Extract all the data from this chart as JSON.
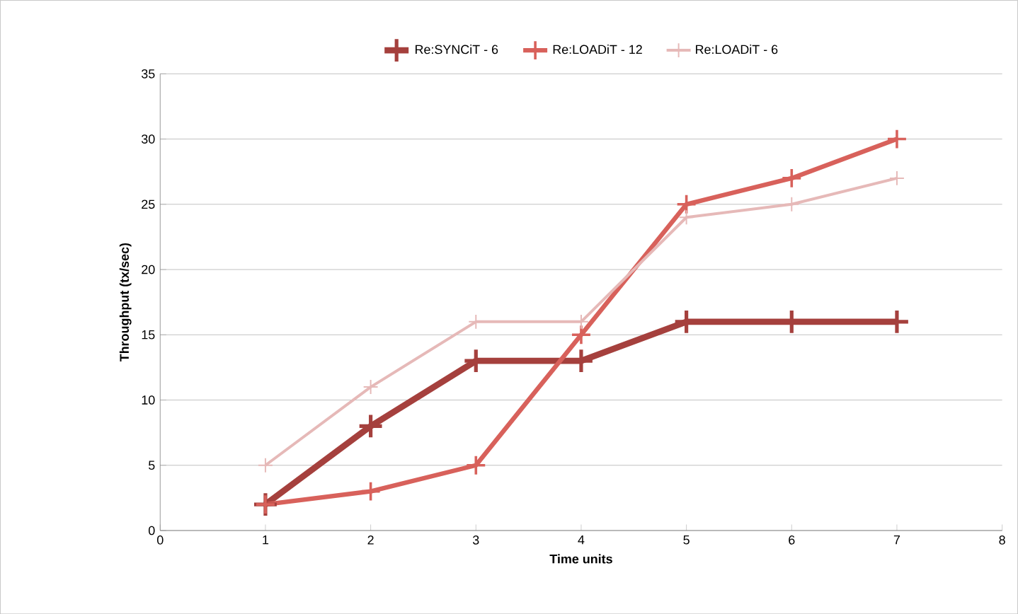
{
  "chart_data": {
    "type": "line",
    "xlabel": "Time units",
    "ylabel": "Throughput (tx/sec)",
    "xlim": [
      0,
      8
    ],
    "xticks": [
      0,
      1,
      2,
      3,
      4,
      5,
      6,
      7,
      8
    ],
    "ylim": [
      0,
      35
    ],
    "yticks": [
      0,
      5,
      10,
      15,
      20,
      25,
      30,
      35
    ],
    "grid": "y",
    "legend": "top",
    "marker": "cross",
    "line_style": "solid",
    "x": [
      1,
      2,
      3,
      4,
      5,
      6,
      7
    ],
    "series": [
      {
        "name": "Re:SYNCiT - 6",
        "color": "#a5403d",
        "values": [
          2,
          8,
          13,
          13,
          16,
          16,
          16
        ]
      },
      {
        "name": "Re:LOADiT - 12",
        "color": "#d8615b",
        "values": [
          2,
          3,
          5,
          15,
          25,
          27,
          30
        ]
      },
      {
        "name": "Re:LOADiT - 6",
        "color": "#e6b9b8",
        "values": [
          5,
          11,
          16,
          16,
          24,
          25,
          27
        ]
      }
    ]
  }
}
